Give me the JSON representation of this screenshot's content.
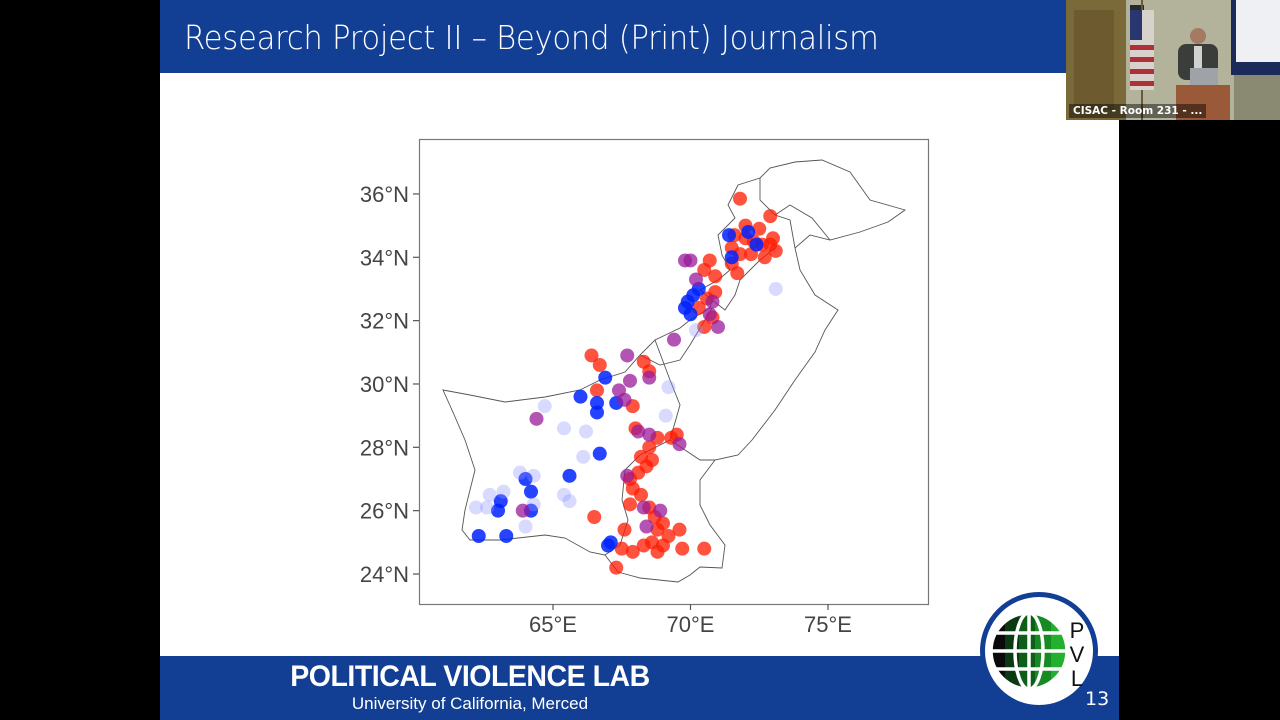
{
  "slide": {
    "title": "Research Project II – Beyond (Print) Journalism",
    "page_number": "13",
    "footer": {
      "title": "POLITICAL VIOLENCE LAB",
      "subtitle": "University of California, Merced"
    },
    "logo": {
      "letters": [
        "P",
        "V",
        "L"
      ]
    },
    "colors": {
      "brand_blue": "#123f94",
      "point_red": "#ff1a00",
      "point_blue": "#0022ff",
      "point_purple": "#9a1a9a"
    }
  },
  "webcam": {
    "label": "CISAC - Room 231 - ..."
  },
  "chart_data": {
    "type": "scatter",
    "title": "",
    "xlabel": "",
    "ylabel": "",
    "x_ticks": [
      "65°E",
      "70°E",
      "75°E"
    ],
    "y_ticks": [
      "24°N",
      "26°N",
      "28°N",
      "30°N",
      "32°N",
      "34°N",
      "36°N"
    ],
    "xlim": [
      60.1,
      78.6
    ],
    "ylim": [
      23.1,
      37.8
    ],
    "grid": false,
    "legend": "none",
    "basemap": "Pakistan provincial boundaries",
    "series": [
      {
        "name": "red",
        "color": "#ff1a00",
        "points": [
          [
            71.8,
            35.85
          ],
          [
            72.9,
            35.3
          ],
          [
            72.0,
            35.0
          ],
          [
            72.5,
            34.9
          ],
          [
            71.6,
            34.7
          ],
          [
            72.0,
            34.6
          ],
          [
            72.3,
            34.5
          ],
          [
            72.6,
            34.4
          ],
          [
            72.9,
            34.4
          ],
          [
            73.1,
            34.2
          ],
          [
            71.5,
            34.3
          ],
          [
            71.8,
            34.1
          ],
          [
            72.2,
            34.1
          ],
          [
            72.7,
            34.0
          ],
          [
            71.5,
            33.8
          ],
          [
            71.7,
            33.5
          ],
          [
            73.0,
            34.6
          ],
          [
            70.7,
            33.9
          ],
          [
            70.5,
            33.6
          ],
          [
            70.9,
            33.4
          ],
          [
            70.6,
            32.7
          ],
          [
            70.9,
            32.9
          ],
          [
            70.3,
            32.4
          ],
          [
            70.8,
            32.1
          ],
          [
            70.5,
            31.8
          ],
          [
            66.4,
            30.9
          ],
          [
            66.7,
            30.6
          ],
          [
            68.3,
            30.7
          ],
          [
            68.5,
            30.4
          ],
          [
            66.6,
            29.8
          ],
          [
            67.9,
            29.3
          ],
          [
            68.0,
            28.6
          ],
          [
            68.8,
            28.3
          ],
          [
            69.3,
            28.3
          ],
          [
            69.5,
            28.4
          ],
          [
            68.5,
            28.0
          ],
          [
            68.2,
            27.7
          ],
          [
            68.4,
            27.4
          ],
          [
            68.1,
            27.2
          ],
          [
            68.6,
            27.6
          ],
          [
            67.8,
            27.0
          ],
          [
            67.9,
            26.7
          ],
          [
            68.2,
            26.5
          ],
          [
            67.8,
            26.2
          ],
          [
            68.5,
            26.1
          ],
          [
            68.7,
            25.8
          ],
          [
            69.0,
            25.6
          ],
          [
            68.8,
            25.4
          ],
          [
            69.2,
            25.2
          ],
          [
            68.6,
            25.0
          ],
          [
            69.0,
            24.9
          ],
          [
            68.8,
            24.7
          ],
          [
            68.3,
            24.9
          ],
          [
            67.5,
            24.8
          ],
          [
            67.9,
            24.7
          ],
          [
            69.6,
            25.4
          ],
          [
            70.5,
            24.8
          ],
          [
            69.7,
            24.8
          ],
          [
            66.5,
            25.8
          ],
          [
            67.3,
            24.2
          ],
          [
            67.6,
            25.4
          ]
        ]
      },
      {
        "name": "blue",
        "color": "#0022ff",
        "points": [
          [
            71.4,
            34.7
          ],
          [
            72.1,
            34.8
          ],
          [
            72.4,
            34.4
          ],
          [
            71.5,
            34.0
          ],
          [
            70.1,
            32.8
          ],
          [
            70.3,
            33.0
          ],
          [
            69.9,
            32.6
          ],
          [
            69.8,
            32.4
          ],
          [
            70.0,
            32.2
          ],
          [
            66.9,
            30.2
          ],
          [
            66.0,
            29.6
          ],
          [
            67.3,
            29.4
          ],
          [
            66.6,
            29.1
          ],
          [
            66.7,
            27.8
          ],
          [
            64.0,
            27.0
          ],
          [
            64.2,
            26.6
          ],
          [
            63.1,
            26.3
          ],
          [
            63.0,
            26.0
          ],
          [
            64.2,
            26.0
          ],
          [
            62.3,
            25.2
          ],
          [
            63.3,
            25.2
          ],
          [
            67.0,
            24.9
          ],
          [
            67.1,
            25.0
          ],
          [
            66.6,
            29.4
          ],
          [
            65.6,
            27.1
          ]
        ]
      },
      {
        "name": "blue-light",
        "color": "#8f95ff",
        "points": [
          [
            73.1,
            33.0
          ],
          [
            64.7,
            29.3
          ],
          [
            65.4,
            28.6
          ],
          [
            66.2,
            28.5
          ],
          [
            66.1,
            27.7
          ],
          [
            69.2,
            29.9
          ],
          [
            69.1,
            29.0
          ],
          [
            63.8,
            27.2
          ],
          [
            64.3,
            27.1
          ],
          [
            62.7,
            26.5
          ],
          [
            63.2,
            26.6
          ],
          [
            62.2,
            26.1
          ],
          [
            62.6,
            26.1
          ],
          [
            65.4,
            26.5
          ],
          [
            65.6,
            26.3
          ],
          [
            64.0,
            25.5
          ],
          [
            64.3,
            26.2
          ],
          [
            70.2,
            31.7
          ]
        ]
      },
      {
        "name": "purple",
        "color": "#9a1a9a",
        "points": [
          [
            69.4,
            31.4
          ],
          [
            67.7,
            30.9
          ],
          [
            67.8,
            30.1
          ],
          [
            68.5,
            30.2
          ],
          [
            67.4,
            29.8
          ],
          [
            67.6,
            29.5
          ],
          [
            64.4,
            28.9
          ],
          [
            63.9,
            26.0
          ],
          [
            68.5,
            28.4
          ],
          [
            68.1,
            28.5
          ],
          [
            69.6,
            28.1
          ],
          [
            67.7,
            27.1
          ],
          [
            68.9,
            26.0
          ],
          [
            68.3,
            26.1
          ],
          [
            68.4,
            25.5
          ],
          [
            69.8,
            33.9
          ],
          [
            70.0,
            33.9
          ],
          [
            70.2,
            33.3
          ],
          [
            70.8,
            32.6
          ],
          [
            71.0,
            31.8
          ],
          [
            70.7,
            32.2
          ]
        ]
      }
    ]
  }
}
